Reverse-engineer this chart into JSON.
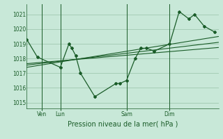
{
  "background_color": "#c8e8d8",
  "plot_bg_color": "#c8e8d8",
  "grid_color": "#a0c8b0",
  "line_color": "#1a5c28",
  "ylabel_ticks": [
    1015,
    1016,
    1017,
    1018,
    1019,
    1020,
    1021
  ],
  "ylim": [
    1014.6,
    1021.7
  ],
  "xlim": [
    0,
    1
  ],
  "xlabel": "Pression niveau de la mer( hPa )",
  "day_positions": [
    0.08,
    0.175,
    0.52,
    0.745
  ],
  "day_labels": [
    "Ven",
    "Lun",
    "Sam",
    "Dim"
  ],
  "series1_x": [
    0.0,
    0.055,
    0.175,
    0.22,
    0.235,
    0.255,
    0.28,
    0.355,
    0.465,
    0.485,
    0.52,
    0.565,
    0.595,
    0.625,
    0.665,
    0.745,
    0.795,
    0.845,
    0.875,
    0.925,
    0.98
  ],
  "series1_y": [
    1019.3,
    1018.1,
    1017.4,
    1019.0,
    1018.7,
    1018.2,
    1017.0,
    1015.4,
    1016.3,
    1016.3,
    1016.5,
    1018.0,
    1018.7,
    1018.7,
    1018.5,
    1019.0,
    1021.2,
    1020.7,
    1021.0,
    1020.2,
    1019.8
  ],
  "trend1_x": [
    0.0,
    1.0
  ],
  "trend1_y": [
    1017.4,
    1019.5
  ],
  "trend2_x": [
    0.0,
    1.0
  ],
  "trend2_y": [
    1017.55,
    1019.1
  ],
  "trend3_x": [
    0.0,
    1.0
  ],
  "trend3_y": [
    1017.65,
    1018.75
  ],
  "fontsize_ticks": 5.5,
  "fontsize_xlabel": 7.0
}
